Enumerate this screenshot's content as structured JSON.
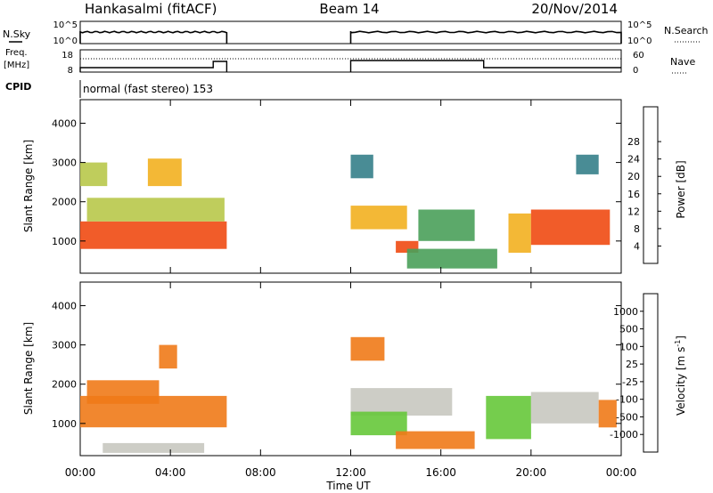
{
  "header": {
    "station": "Hankasalmi (fitACF)",
    "beam": "Beam 14",
    "date": "20/Nov/2014"
  },
  "status_panels": {
    "nsky_label": "N.Sky",
    "nsky_ticks": [
      "10^5",
      "10^0"
    ],
    "nsearch_label": "N.Search",
    "nsearch_ticks": [
      "10^5",
      "10^0"
    ],
    "freq_label_line1": "Freq.",
    "freq_label_line2": "[MHz]",
    "freq_ticks": [
      "18",
      "8"
    ],
    "nave_label": "Nave",
    "nave_ticks": [
      "60",
      "0"
    ],
    "cpid_label": "CPID",
    "cpid_text": "normal (fast stereo) 153",
    "operation_blocks_hours": [
      [
        0.0,
        6.5
      ],
      [
        12.0,
        24.0
      ]
    ]
  },
  "axes": {
    "ylabel": "Slant Range [km]",
    "yticks": [
      "1000",
      "2000",
      "3000",
      "4000"
    ],
    "xticks": [
      "00:00",
      "04:00",
      "08:00",
      "12:00",
      "16:00",
      "20:00",
      "00:00"
    ],
    "xlabel": "Time UT"
  },
  "colorbars": {
    "power": {
      "title": "Power [dB]",
      "ticks": [
        "4",
        "8",
        "12",
        "16",
        "20",
        "24",
        "28"
      ],
      "colors": [
        "#1f1fe0",
        "#2d55b8",
        "#35808a",
        "#4aa05a",
        "#b8c84a",
        "#f2b020",
        "#f58a1a",
        "#f04a12",
        "#e61a10"
      ]
    },
    "velocity": {
      "title": "Velocity [m s",
      "title_exponent": "-1",
      "title_tail": "]",
      "ticks": [
        "1000",
        "500",
        "100",
        "25",
        "-25",
        "-100",
        "-500",
        "-1000"
      ],
      "colors": [
        "#2030c0",
        "#2f6fa8",
        "#3f8a5a",
        "#66c83a",
        "#c8c8c0",
        "#f0b020",
        "#f07a18",
        "#f04010",
        "#e60f0f"
      ]
    }
  },
  "chart_data": [
    {
      "type": "heatmap",
      "name": "power-panel",
      "xlabel": "Time UT",
      "ylabel": "Slant Range [km]",
      "xlim_hours": [
        0,
        24
      ],
      "ylim_km": [
        180,
        4600
      ],
      "colorbar": "Power [dB]",
      "regions": [
        {
          "t": [
            0.0,
            6.5
          ],
          "r": [
            800,
            1500
          ],
          "v": 29
        },
        {
          "t": [
            0.3,
            6.4
          ],
          "r": [
            1500,
            2100
          ],
          "v": 14
        },
        {
          "t": [
            0.0,
            1.2
          ],
          "r": [
            2400,
            3000
          ],
          "v": 16
        },
        {
          "t": [
            3.0,
            4.5
          ],
          "r": [
            2400,
            3100
          ],
          "v": 18
        },
        {
          "t": [
            12.0,
            14.5
          ],
          "r": [
            1300,
            1900
          ],
          "v": 20
        },
        {
          "t": [
            12.0,
            13.0
          ],
          "r": [
            2600,
            3200
          ],
          "v": 8
        },
        {
          "t": [
            14.0,
            15.0
          ],
          "r": [
            700,
            1000
          ],
          "v": 27
        },
        {
          "t": [
            14.5,
            18.5
          ],
          "r": [
            300,
            800
          ],
          "v": 12
        },
        {
          "t": [
            15.0,
            17.5
          ],
          "r": [
            1000,
            1800
          ],
          "v": 10
        },
        {
          "t": [
            19.0,
            20.0
          ],
          "r": [
            700,
            1700
          ],
          "v": 20
        },
        {
          "t": [
            20.0,
            23.5
          ],
          "r": [
            900,
            1800
          ],
          "v": 29
        },
        {
          "t": [
            22.0,
            23.0
          ],
          "r": [
            2700,
            3200
          ],
          "v": 6
        }
      ]
    },
    {
      "type": "heatmap",
      "name": "velocity-panel",
      "xlabel": "Time UT",
      "ylabel": "Slant Range [km]",
      "xlim_hours": [
        0,
        24
      ],
      "ylim_km": [
        180,
        4600
      ],
      "colorbar": "Velocity [m s-1]",
      "regions": [
        {
          "t": [
            0.0,
            6.5
          ],
          "r": [
            900,
            1700
          ],
          "v": -200
        },
        {
          "t": [
            0.3,
            3.5
          ],
          "r": [
            1500,
            2100
          ],
          "v": -300
        },
        {
          "t": [
            3.5,
            4.3
          ],
          "r": [
            2400,
            3000
          ],
          "v": -150
        },
        {
          "t": [
            1.0,
            5.5
          ],
          "r": [
            250,
            500
          ],
          "v": 0
        },
        {
          "t": [
            12.0,
            16.5
          ],
          "r": [
            1200,
            1900
          ],
          "v": 0
        },
        {
          "t": [
            12.0,
            13.5
          ],
          "r": [
            2600,
            3200
          ],
          "v": -120
        },
        {
          "t": [
            12.0,
            14.5
          ],
          "r": [
            700,
            1300
          ],
          "v": 80
        },
        {
          "t": [
            14.0,
            17.5
          ],
          "r": [
            350,
            800
          ],
          "v": -150
        },
        {
          "t": [
            18.0,
            20.0
          ],
          "r": [
            600,
            1700
          ],
          "v": 70
        },
        {
          "t": [
            20.0,
            23.0
          ],
          "r": [
            1000,
            1800
          ],
          "v": 0
        },
        {
          "t": [
            23.0,
            23.8
          ],
          "r": [
            900,
            1600
          ],
          "v": -200
        }
      ]
    }
  ]
}
